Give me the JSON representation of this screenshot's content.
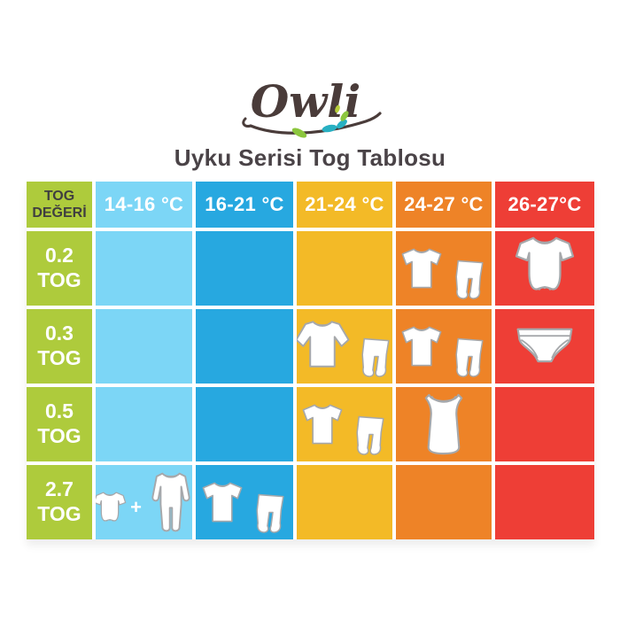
{
  "logo": {
    "text": "Owli"
  },
  "title": "Uyku Serisi Tog Tablosu",
  "colors": {
    "green": "#aecb3c",
    "lightblue": "#7cd6f6",
    "blue": "#27a8e0",
    "yellow": "#f3ba27",
    "orange": "#ee8327",
    "red": "#ee3e36",
    "title_text": "#4a4347",
    "corner_text": "#3f3e40",
    "cell_text": "#ffffff",
    "icon_outline": "#a6a8ab",
    "logo_ink": "#4a3c3a",
    "leaf_teal": "#28b0c2",
    "leaf_green": "#8cc63e"
  },
  "plus_sign": "+",
  "table": {
    "corner_label_lines": [
      "TOG",
      "DEĞERİ"
    ],
    "columns": [
      {
        "label": "14-16 °C",
        "color": "lightblue"
      },
      {
        "label": "16-21 °C",
        "color": "blue"
      },
      {
        "label": "21-24 °C",
        "color": "yellow"
      },
      {
        "label": "24-27 °C",
        "color": "orange"
      },
      {
        "label": "26-27°C",
        "color": "red"
      }
    ],
    "rows": [
      {
        "tog_value": "0.2",
        "tog_unit": "TOG",
        "cells": [
          [],
          [],
          [],
          [
            "t-shirt",
            "footed-pants"
          ],
          [
            "bodysuit"
          ]
        ]
      },
      {
        "tog_value": "0.3",
        "tog_unit": "TOG",
        "cells": [
          [],
          [],
          [
            "long-sleeve-shirt",
            "footed-pants"
          ],
          [
            "t-shirt",
            "footed-pants"
          ],
          [
            "briefs"
          ]
        ]
      },
      {
        "tog_value": "0.5",
        "tog_unit": "TOG",
        "cells": [
          [],
          [],
          [
            "t-shirt",
            "footed-pants"
          ],
          [
            "tank-top"
          ],
          []
        ]
      },
      {
        "tog_value": "2.7",
        "tog_unit": "TOG",
        "cells": [
          [
            "bodysuit-small",
            "plus",
            "sleeper"
          ],
          [
            "t-shirt",
            "footed-pants"
          ],
          [],
          [],
          []
        ]
      }
    ]
  },
  "chart_data": {
    "type": "table",
    "title": "Uyku Serisi Tog Tablosu",
    "columns": [
      "TOG DEĞERİ",
      "14-16 °C",
      "16-21 °C",
      "21-24 °C",
      "24-27 °C",
      "26-27°C"
    ],
    "rows": [
      [
        "0.2 TOG",
        "",
        "",
        "",
        "t-shirt + footed-pants",
        "bodysuit"
      ],
      [
        "0.3 TOG",
        "",
        "",
        "long-sleeve-shirt + footed-pants",
        "t-shirt + footed-pants",
        "briefs"
      ],
      [
        "0.5 TOG",
        "",
        "",
        "t-shirt + footed-pants",
        "tank-top",
        ""
      ],
      [
        "2.7 TOG",
        "bodysuit + sleeper",
        "t-shirt + footed-pants",
        "",
        "",
        ""
      ]
    ],
    "legend_position": "none",
    "grid": "white 4px gaps between colored cells"
  }
}
